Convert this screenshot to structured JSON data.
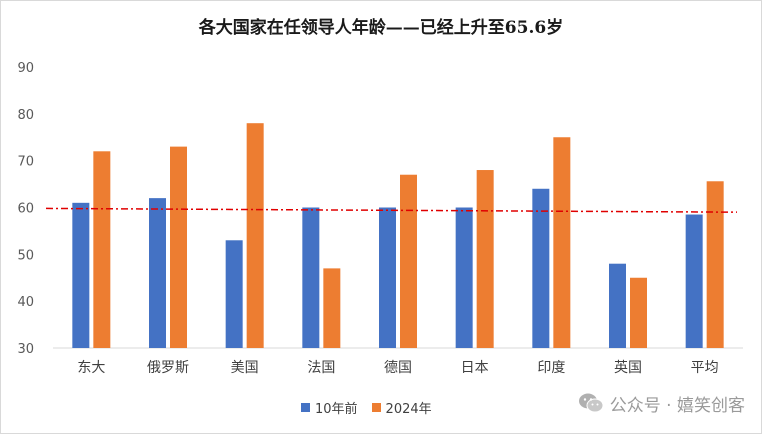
{
  "chart_data": {
    "type": "bar",
    "title": "各大国家在任领导人年龄——已经上升至65.6岁",
    "categories": [
      "东大",
      "俄罗斯",
      "美国",
      "法国",
      "德国",
      "日本",
      "印度",
      "英国",
      "平均"
    ],
    "series": [
      {
        "name": "10年前",
        "color": "#4472c4",
        "values": [
          61,
          62,
          53,
          60,
          60,
          60,
          64,
          48,
          58.5
        ]
      },
      {
        "name": "2024年",
        "color": "#ed7d31",
        "values": [
          72,
          73,
          78,
          47,
          67,
          68,
          75,
          45,
          65.6
        ]
      }
    ],
    "ylim": [
      30,
      90
    ],
    "yticks": [
      30,
      40,
      50,
      60,
      70,
      80,
      90
    ],
    "trendline": {
      "color": "#e00000",
      "start": 59.8,
      "end": 59.0,
      "style": "dash-dot"
    },
    "grid": false,
    "legend_position": "bottom"
  },
  "watermark": {
    "text": "公众号 · 嬉笑创客",
    "icon": "wechat-icon"
  }
}
